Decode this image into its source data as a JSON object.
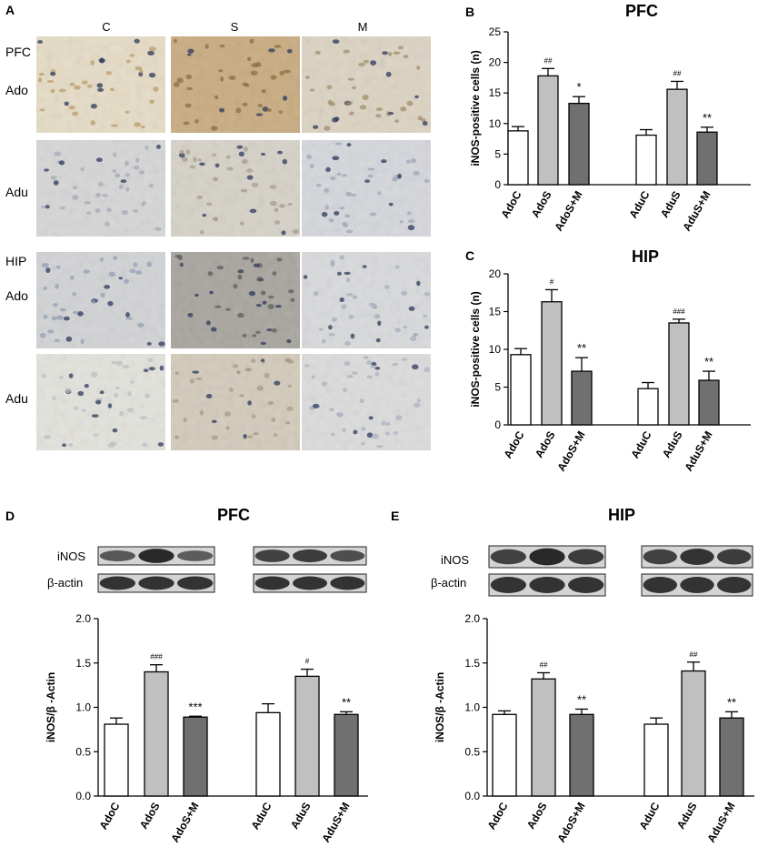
{
  "figure": {
    "panel_A": {
      "letter": "A",
      "columns": [
        "C",
        "S",
        "M"
      ],
      "row_labels": [
        {
          "region": "PFC",
          "group": "Ado"
        },
        {
          "region": "",
          "group": "Adu"
        },
        {
          "region": "HIP",
          "group": "Ado"
        },
        {
          "region": "",
          "group": "Adu"
        }
      ],
      "tiles": [
        [
          {
            "base": "#e6dcc6",
            "stain": "#b89a6a"
          },
          {
            "base": "#c9ac80",
            "stain": "#8a6a3c"
          },
          {
            "base": "#dcd3c2",
            "stain": "#a08a68"
          }
        ],
        [
          {
            "base": "#d7d6d6",
            "stain": "#a0a8b6"
          },
          {
            "base": "#d6d2c8",
            "stain": "#a39a8a"
          },
          {
            "base": "#d5d7dc",
            "stain": "#9aa4b4"
          }
        ],
        [
          {
            "base": "#d2d3d5",
            "stain": "#8e9db4"
          },
          {
            "base": "#a8a49e",
            "stain": "#5a5a5c"
          },
          {
            "base": "#d9dadc",
            "stain": "#a3adbd"
          }
        ],
        [
          {
            "base": "#e3e2dc",
            "stain": "#b9bcc2"
          },
          {
            "base": "#d3cbbb",
            "stain": "#a49880"
          },
          {
            "base": "#dcdcdc",
            "stain": "#a8b0be"
          }
        ]
      ]
    },
    "blots": {
      "D": {
        "rows": [
          "iNOS",
          "β-actin"
        ]
      },
      "E": {
        "rows": [
          "iNOS",
          "β-actin"
        ]
      }
    }
  },
  "chart_data": [
    {
      "panel": "B",
      "type": "bar",
      "title": "PFC",
      "ylabel": "iNOS-positive cells (n)",
      "ylim": [
        0,
        25
      ],
      "yticks": [
        "0",
        "5",
        "10",
        "15",
        "20",
        "25"
      ],
      "categories": [
        "AdoC",
        "AdoS",
        "AdoS+M",
        "AduC",
        "AduS",
        "AduS+M"
      ],
      "values": [
        8.8,
        17.8,
        13.3,
        8.1,
        15.6,
        8.6
      ],
      "errors": [
        0.7,
        1.2,
        1.1,
        0.9,
        1.3,
        0.8
      ],
      "annotations": [
        "",
        "##",
        "*",
        "",
        "##",
        "**"
      ],
      "colors": [
        "#ffffff",
        "#c0c0c0",
        "#707070",
        "#ffffff",
        "#c0c0c0",
        "#707070"
      ]
    },
    {
      "panel": "C",
      "type": "bar",
      "title": "HIP",
      "ylabel": "iNOS-positive cells (n)",
      "ylim": [
        0,
        20
      ],
      "yticks": [
        "0",
        "5",
        "10",
        "15",
        "20"
      ],
      "categories": [
        "AdoC",
        "AdoS",
        "AdoS+M",
        "AduC",
        "AduS",
        "AduS+M"
      ],
      "values": [
        9.3,
        16.3,
        7.1,
        4.8,
        13.5,
        5.9
      ],
      "errors": [
        0.8,
        1.6,
        1.8,
        0.8,
        0.5,
        1.2
      ],
      "annotations": [
        "",
        "#",
        "**",
        "",
        "###",
        "**"
      ],
      "colors": [
        "#ffffff",
        "#c0c0c0",
        "#707070",
        "#ffffff",
        "#c0c0c0",
        "#707070"
      ]
    },
    {
      "panel": "D",
      "type": "bar",
      "title": "PFC",
      "ylabel": "iNOS/β -Actin",
      "ylim": [
        0,
        2
      ],
      "yticks": [
        "0.0",
        "0.5",
        "1.0",
        "1.5",
        "2.0"
      ],
      "categories": [
        "AdoC",
        "AdoS",
        "AdoS+M",
        "AduC",
        "AduS",
        "AduS+M"
      ],
      "values": [
        0.81,
        1.4,
        0.89,
        0.94,
        1.35,
        0.92
      ],
      "errors": [
        0.07,
        0.08,
        0.01,
        0.1,
        0.08,
        0.03
      ],
      "annotations": [
        "",
        "###",
        "***",
        "",
        "#",
        "**"
      ],
      "colors": [
        "#ffffff",
        "#c0c0c0",
        "#707070",
        "#ffffff",
        "#c0c0c0",
        "#707070"
      ]
    },
    {
      "panel": "E",
      "type": "bar",
      "title": "HIP",
      "ylabel": "iNOS/β -Actin",
      "ylim": [
        0,
        2
      ],
      "yticks": [
        "0.0",
        "0.5",
        "1.0",
        "1.5",
        "2.0"
      ],
      "categories": [
        "AdoC",
        "AdoS",
        "AdoS+M",
        "AduC",
        "AduS",
        "AduS+M"
      ],
      "values": [
        0.92,
        1.32,
        0.92,
        0.81,
        1.41,
        0.88
      ],
      "errors": [
        0.04,
        0.07,
        0.06,
        0.07,
        0.1,
        0.07
      ],
      "annotations": [
        "",
        "##",
        "**",
        "",
        "##",
        "**"
      ],
      "colors": [
        "#ffffff",
        "#c0c0c0",
        "#707070",
        "#ffffff",
        "#c0c0c0",
        "#707070"
      ]
    }
  ]
}
